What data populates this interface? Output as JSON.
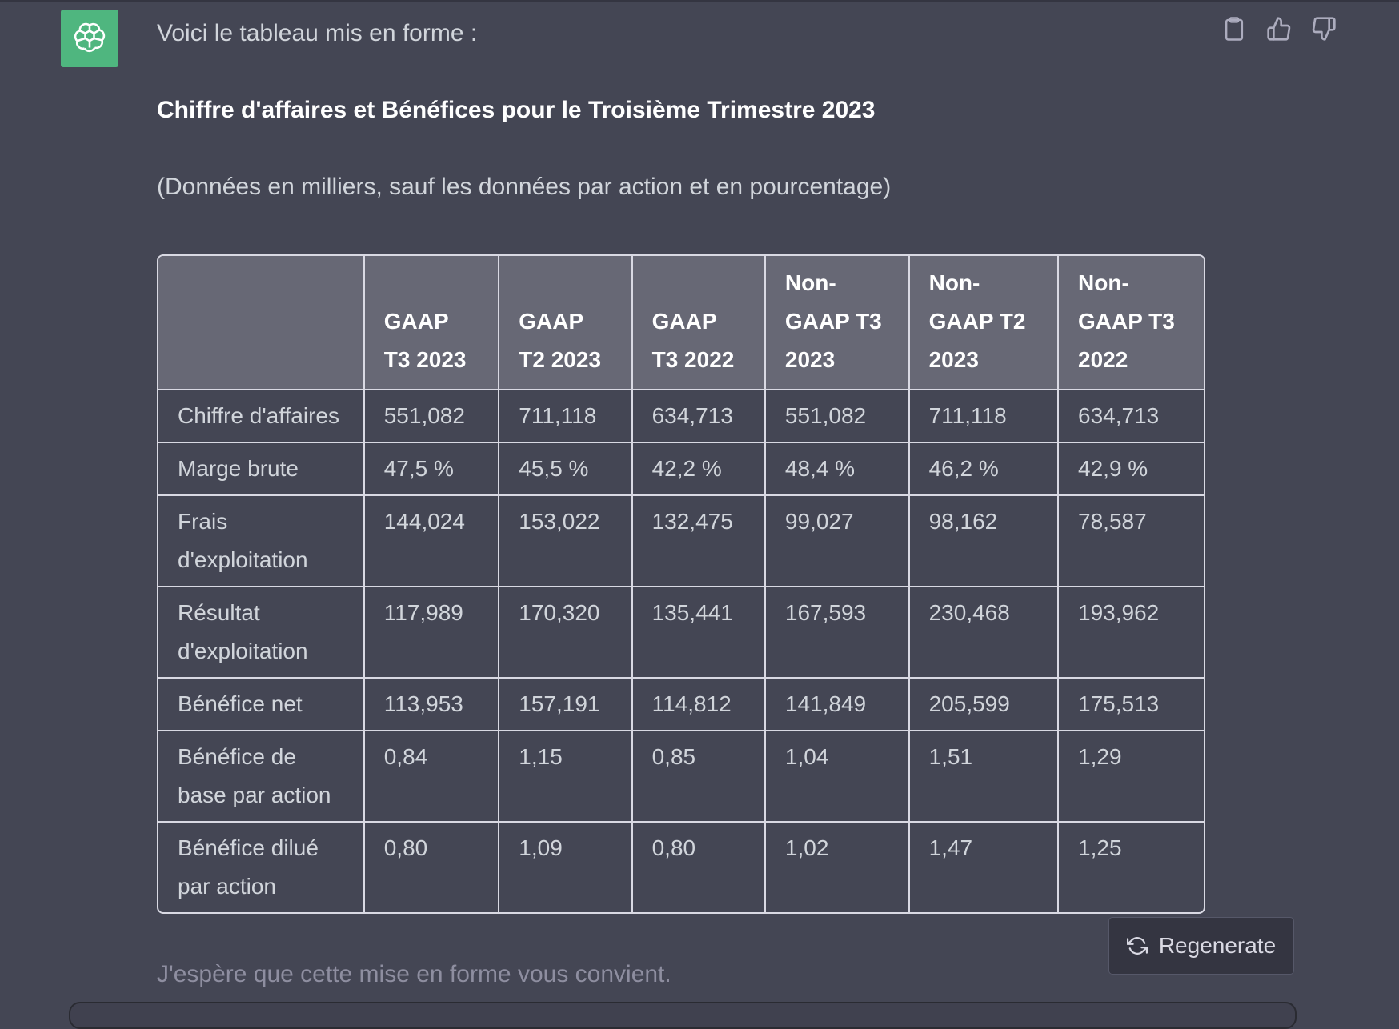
{
  "message": {
    "intro": "Voici le tableau mis en forme :",
    "heading": "Chiffre d'affaires et Bénéfices pour le Troisième Trimestre 2023",
    "subtitle": "(Données en milliers, sauf les données par action et en pourcentage)",
    "closing": "J'espère que cette mise en forme vous convient."
  },
  "icons": {
    "avatar": "openai-logo-icon",
    "copy": "clipboard-icon",
    "like": "thumbs-up-icon",
    "dislike": "thumbs-down-icon",
    "regenerate": "refresh-icon"
  },
  "table": {
    "headers": [
      "",
      "GAAP T3 2023",
      "GAAP T2 2023",
      "GAAP T3 2022",
      "Non-GAAP T3 2023",
      "Non-GAAP T2 2023",
      "Non-GAAP T3 2022"
    ],
    "rows": [
      [
        "Chiffre d'affaires",
        "551,082",
        "711,118",
        "634,713",
        "551,082",
        "711,118",
        "634,713"
      ],
      [
        "Marge brute",
        "47,5 %",
        "45,5 %",
        "42,2 %",
        "48,4 %",
        "46,2 %",
        "42,9 %"
      ],
      [
        "Frais d'exploitation",
        "144,024",
        "153,022",
        "132,475",
        "99,027",
        "98,162",
        "78,587"
      ],
      [
        "Résultat d'exploitation",
        "117,989",
        "170,320",
        "135,441",
        "167,593",
        "230,468",
        "193,962"
      ],
      [
        "Bénéfice net",
        "113,953",
        "157,191",
        "114,812",
        "141,849",
        "205,599",
        "175,513"
      ],
      [
        "Bénéfice de base par action",
        "0,84",
        "1,15",
        "0,85",
        "1,04",
        "1,51",
        "1,29"
      ],
      [
        "Bénéfice dilué par action",
        "0,80",
        "1,09",
        "0,80",
        "1,02",
        "1,47",
        "1,25"
      ]
    ]
  },
  "regenerate_label": "Regenerate",
  "colors": {
    "background": "#444654",
    "avatar": "#4fb67f",
    "header_bg": "#676875",
    "border": "#d9d9e3"
  }
}
